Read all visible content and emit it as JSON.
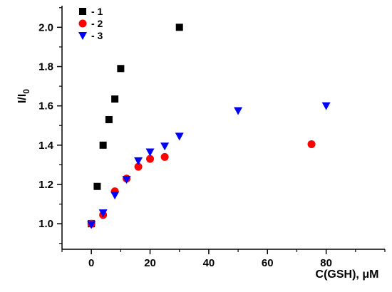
{
  "chart_data": {
    "type": "scatter",
    "xlabel": "C(GSH), μM",
    "ylabel_main": "I/I",
    "ylabel_sub": "0",
    "xlim": [
      -10,
      100
    ],
    "ylim": [
      0.87,
      2.11
    ],
    "x_ticks": [
      "0",
      "20",
      "40",
      "60",
      "80"
    ],
    "x_tick_values": [
      0,
      20,
      40,
      60,
      80
    ],
    "y_ticks": [
      "1.0",
      "1.2",
      "1.4",
      "1.6",
      "1.8",
      "2.0"
    ],
    "y_tick_values": [
      1.0,
      1.2,
      1.4,
      1.6,
      1.8,
      2.0
    ],
    "legend_position": "top-left",
    "grid": false,
    "series": [
      {
        "name": "- 1",
        "marker": "square",
        "color": "#000000",
        "points": [
          [
            0,
            1.0
          ],
          [
            2,
            1.19
          ],
          [
            4,
            1.4
          ],
          [
            6,
            1.53
          ],
          [
            8,
            1.635
          ],
          [
            10,
            1.79
          ],
          [
            30,
            2.0
          ]
        ]
      },
      {
        "name": "- 2",
        "marker": "circle",
        "color": "#ff0000",
        "points": [
          [
            0,
            1.0
          ],
          [
            4,
            1.045
          ],
          [
            8,
            1.165
          ],
          [
            12,
            1.23
          ],
          [
            16,
            1.29
          ],
          [
            20,
            1.33
          ],
          [
            25,
            1.34
          ],
          [
            75,
            1.405
          ]
        ]
      },
      {
        "name": "- 3",
        "marker": "triangle-down",
        "color": "#0000ff",
        "points": [
          [
            0,
            0.995
          ],
          [
            4,
            1.055
          ],
          [
            8,
            1.145
          ],
          [
            12,
            1.225
          ],
          [
            16,
            1.32
          ],
          [
            20,
            1.365
          ],
          [
            25,
            1.395
          ],
          [
            30,
            1.445
          ],
          [
            50,
            1.575
          ],
          [
            80,
            1.6
          ]
        ]
      }
    ]
  }
}
